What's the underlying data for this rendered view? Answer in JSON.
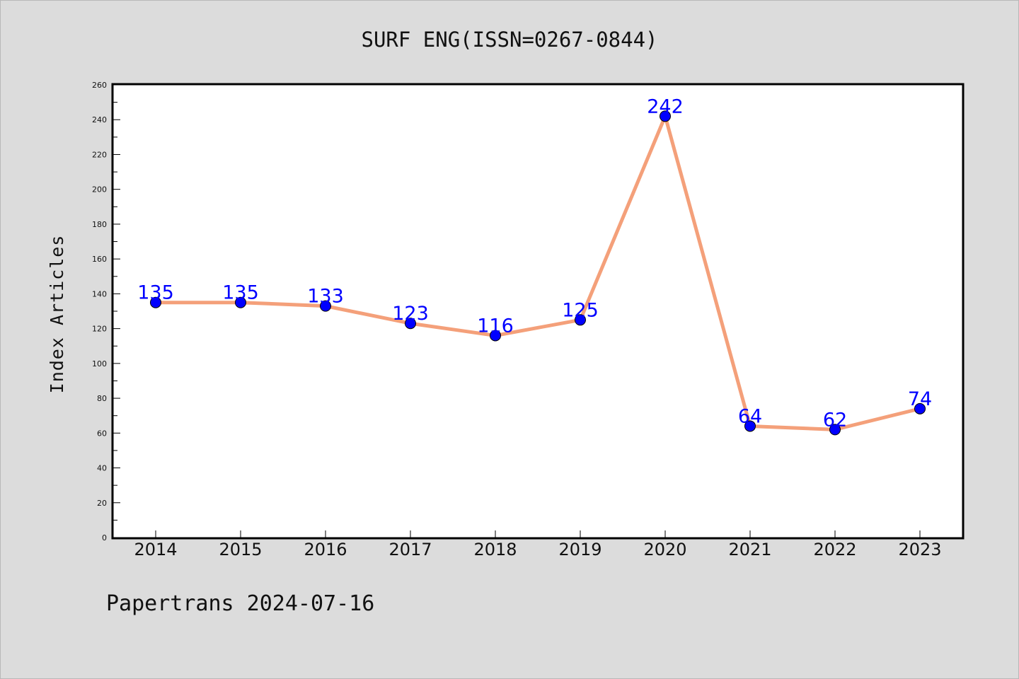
{
  "chart_data": {
    "type": "line",
    "title": "SURF ENG(ISSN=0267-0844)",
    "ylabel": "Index Articles",
    "xlabel": "",
    "categories": [
      "2014",
      "2015",
      "2016",
      "2017",
      "2018",
      "2019",
      "2020",
      "2021",
      "2022",
      "2023"
    ],
    "series": [
      {
        "values": [
          135,
          135,
          133,
          123,
          116,
          125,
          242,
          64,
          62,
          74
        ]
      }
    ],
    "ylim": [
      0,
      260
    ],
    "yticks": [
      0,
      20,
      40,
      60,
      80,
      100,
      120,
      140,
      160,
      180,
      200,
      220,
      240,
      260
    ],
    "data_labels": true,
    "grid": false,
    "colors": {
      "line": "#f4a07a",
      "marker": "#0000ff",
      "label": "#0000ff",
      "background": "#dcdcdc",
      "plot": "#ffffff"
    }
  },
  "footer": "Papertrans 2024-07-16"
}
